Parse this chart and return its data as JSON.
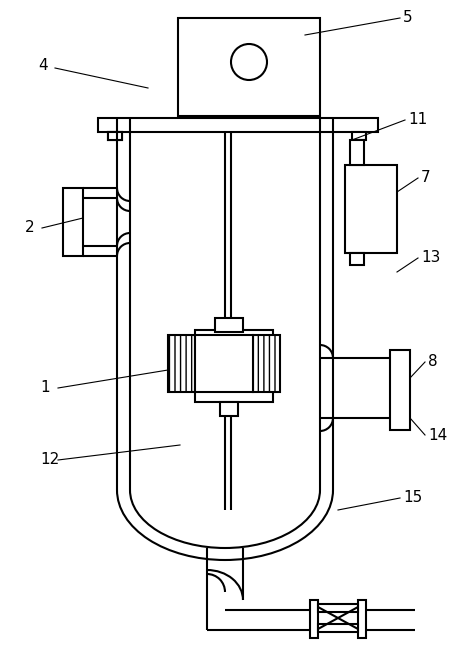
{
  "fig_width": 4.72,
  "fig_height": 6.64,
  "dpi": 100,
  "bg_color": "#ffffff",
  "line_color": "#000000",
  "lw": 1.5,
  "lw_thin": 0.8,
  "lw_label": 0.8
}
